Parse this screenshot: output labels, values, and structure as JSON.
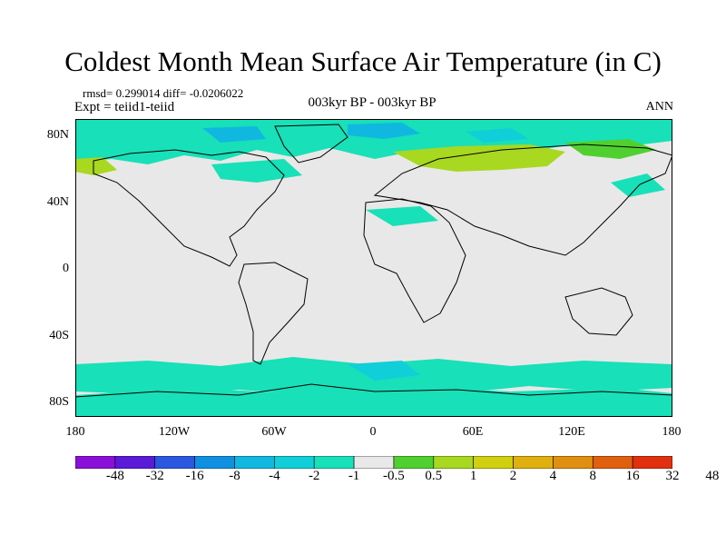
{
  "title": "Coldest Month Mean Surface Air Temperature (in C)",
  "stats": "rmsd= 0.299014 diff= -0.0206022",
  "expt": "Expt = teiid1-teiid",
  "period": "003kyr BP - 003kyr BP",
  "season": "ANN",
  "lat_labels": [
    "80N",
    "40N",
    "0",
    "40S",
    "80S"
  ],
  "lon_labels": [
    "180",
    "120W",
    "60W",
    "0",
    "60E",
    "120E",
    "180"
  ],
  "colorbar": {
    "colors": [
      "#8a10d8",
      "#5a1ad8",
      "#2a58e0",
      "#1090e0",
      "#10b8e0",
      "#10cfd8",
      "#18e0b8",
      "#e8e8e8",
      "#50d030",
      "#a8d820",
      "#d0d010",
      "#e0b010",
      "#e09010",
      "#e06010",
      "#e03010"
    ],
    "labels": [
      "-48",
      "-32",
      "-16",
      "-8",
      "-4",
      "-2",
      "-1",
      "-0.5",
      "0.5",
      "1",
      "2",
      "4",
      "8",
      "16",
      "32",
      "48"
    ]
  },
  "map_colors": {
    "background": "#e8e8e8",
    "light_cyan": "#18e0b8",
    "cyan": "#10cfd8",
    "blue": "#10b8e0",
    "light_green": "#a8d820",
    "green": "#50d030",
    "coast": "#000000"
  }
}
